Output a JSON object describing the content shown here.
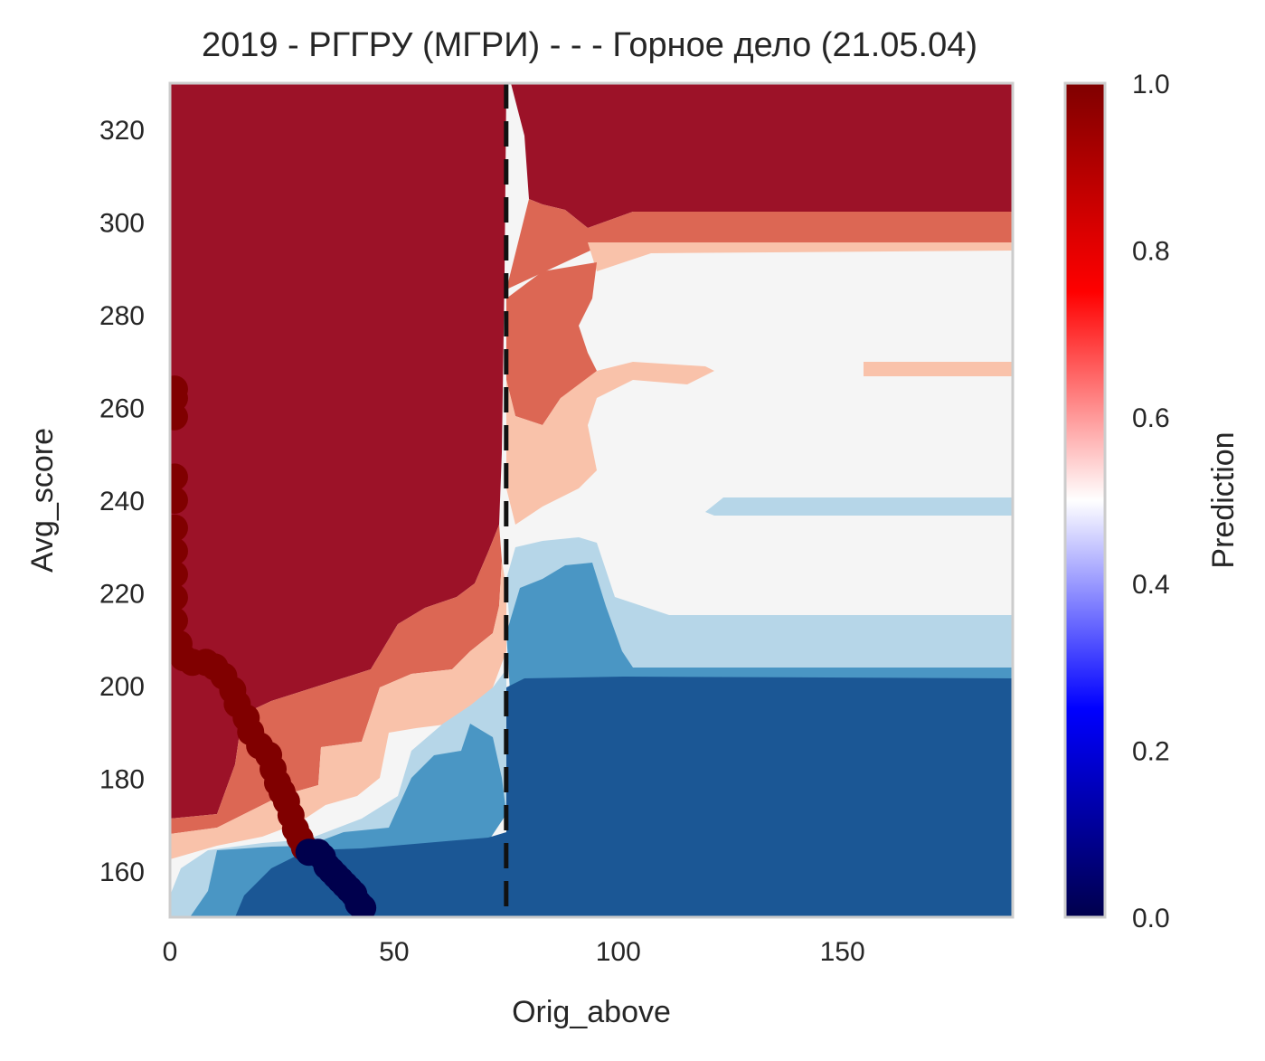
{
  "chart_data": {
    "type": "heatmap",
    "title": "2019 - РГГРУ (МГРИ) - - - Горное дело (21.05.04)",
    "xlabel": "Orig_above",
    "ylabel": "Avg_score",
    "xlim": [
      0,
      188
    ],
    "ylim": [
      150,
      330
    ],
    "xticks": [
      0,
      50,
      100,
      150
    ],
    "yticks": [
      160,
      180,
      200,
      220,
      240,
      260,
      280,
      300,
      320
    ],
    "threshold_line": {
      "x": 75,
      "style": "dashed",
      "color": "#111111"
    },
    "colorbar": {
      "label": "Prediction",
      "ticks": [
        "0.0",
        "0.2",
        "0.4",
        "0.6",
        "0.8",
        "1.0"
      ],
      "range": [
        0,
        1
      ],
      "colormap": "seismic"
    },
    "contour_levels": [
      {
        "level": "0.0–0.2",
        "color": "#1b5795"
      },
      {
        "level": "0.2–0.35",
        "color": "#4a96c4"
      },
      {
        "level": "0.35–0.45",
        "color": "#b6d6e8"
      },
      {
        "level": "0.45–0.55",
        "color": "#f5f5f5"
      },
      {
        "level": "0.55–0.65",
        "color": "#f9c2aa"
      },
      {
        "level": "0.65–0.85",
        "color": "#dc6754"
      },
      {
        "level": "0.85–1.0",
        "color": "#9c1228"
      }
    ],
    "series": [
      {
        "values": [
          [
            1,
            264,
            1
          ],
          [
            1,
            262,
            1
          ],
          [
            1,
            258,
            1
          ],
          [
            1,
            245,
            1
          ],
          [
            1,
            240,
            1
          ],
          [
            1,
            234,
            1
          ],
          [
            1,
            229,
            1
          ],
          [
            1,
            224,
            1
          ],
          [
            1,
            219,
            1
          ],
          [
            1,
            214,
            1
          ],
          [
            2,
            209,
            1
          ],
          [
            3,
            206,
            1
          ],
          [
            5,
            205,
            1
          ],
          [
            8,
            205,
            1
          ],
          [
            10,
            204,
            1
          ],
          [
            12,
            202,
            1
          ],
          [
            14,
            199,
            1
          ],
          [
            15,
            196,
            1
          ],
          [
            17,
            193,
            1
          ],
          [
            18,
            190,
            1
          ],
          [
            20,
            187,
            1
          ],
          [
            22,
            185,
            1
          ],
          [
            23,
            182,
            1
          ],
          [
            24,
            179,
            1
          ],
          [
            25,
            177,
            1
          ],
          [
            26,
            175,
            1
          ],
          [
            27,
            172,
            1
          ],
          [
            28,
            169,
            1
          ],
          [
            29,
            167,
            1
          ],
          [
            30,
            165,
            1
          ],
          [
            31,
            164,
            0
          ],
          [
            33,
            164,
            0
          ],
          [
            34,
            163,
            0
          ],
          [
            35,
            161,
            0
          ],
          [
            36,
            160,
            0
          ],
          [
            37,
            159,
            0
          ],
          [
            38,
            158,
            0
          ],
          [
            39,
            157,
            0
          ],
          [
            40,
            156,
            0
          ],
          [
            41,
            155,
            0
          ],
          [
            42,
            153,
            0
          ],
          [
            43,
            152,
            0
          ]
        ],
        "value_fields": [
          "Orig_above",
          "Avg_score",
          "Prediction"
        ]
      }
    ]
  },
  "colors": {
    "dot_high": "#800000",
    "dot_low": "#00004d",
    "frame": "#cccccc",
    "text": "#262626"
  }
}
